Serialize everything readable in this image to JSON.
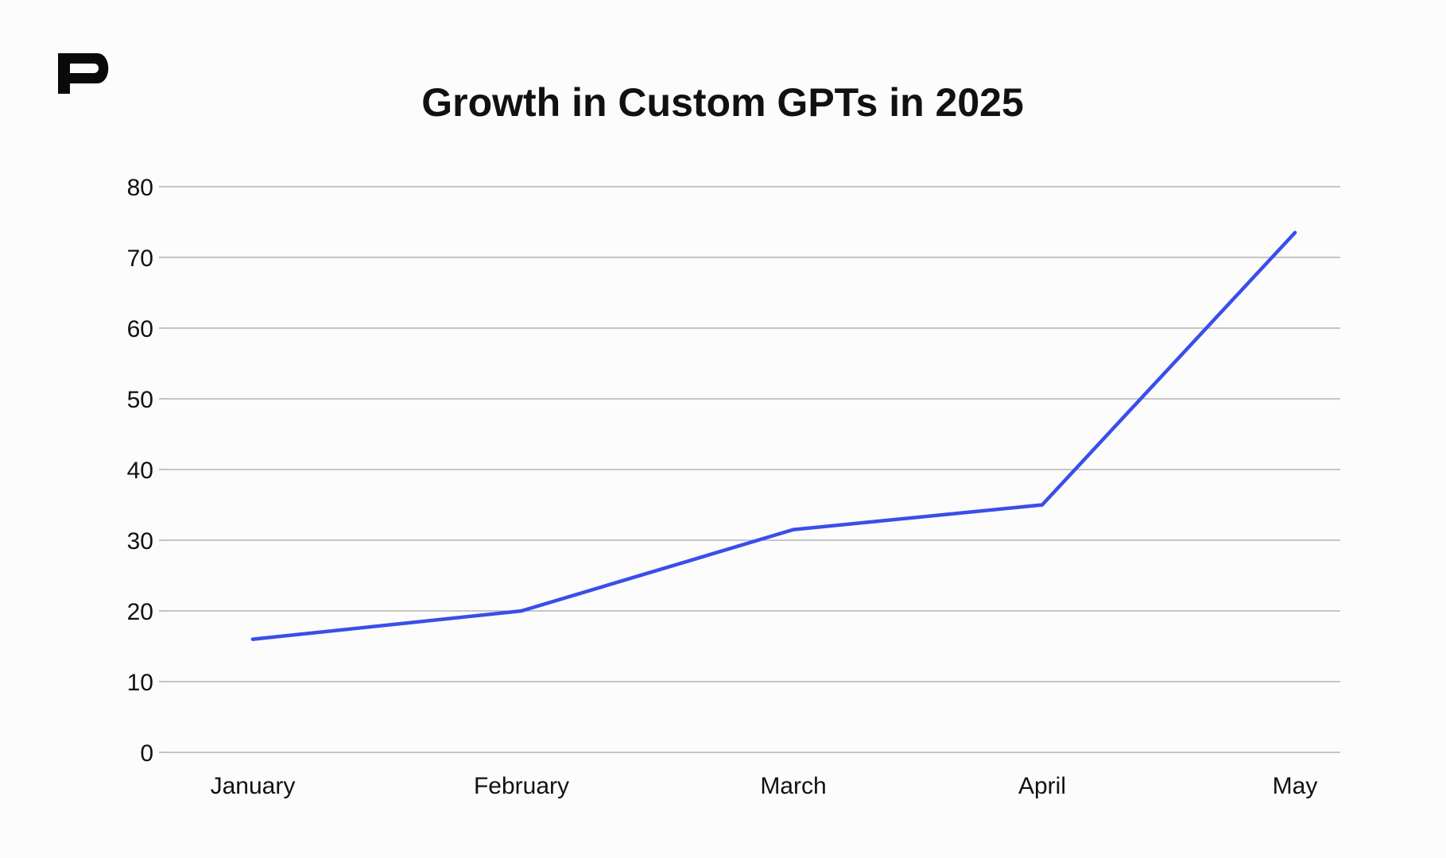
{
  "brand": {
    "logo_letter": "P"
  },
  "chart_data": {
    "type": "line",
    "title": "Growth in Custom GPTs in 2025",
    "xlabel": "",
    "ylabel": "",
    "categories": [
      "January",
      "February",
      "March",
      "April",
      "May"
    ],
    "series": [
      {
        "name": "Custom GPTs",
        "values": [
          16,
          20,
          31.5,
          35,
          73.5
        ],
        "color": "#3a4ee9"
      }
    ],
    "ylim": [
      0,
      80
    ],
    "yticks": [
      0,
      10,
      20,
      30,
      40,
      50,
      60,
      70,
      80
    ],
    "grid": true,
    "legend": "none"
  },
  "colors": {
    "background": "#fcfcfc",
    "text": "#111111",
    "grid": "#a6a6a6",
    "line": "#3a4ee9"
  }
}
